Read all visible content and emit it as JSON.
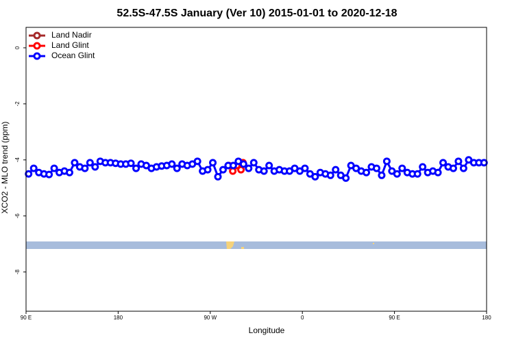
{
  "chart_data": {
    "type": "line",
    "title": "52.5S-47.5S January (Ver 10)   2015-01-01 to 2020-12-18",
    "xlabel": "Longitude",
    "ylabel": "XCO2 - MLO trend (ppm)",
    "xlim": [
      90,
      540
    ],
    "ylim": [
      -9.4,
      0.73
    ],
    "xticks": [
      {
        "value": 90,
        "label": "90 E"
      },
      180,
      {
        "value": 270,
        "label": "90 W"
      },
      {
        "value": 360,
        "label": "0"
      },
      {
        "value": 450,
        "label": "90 E"
      },
      {
        "value": 540,
        "label": "180"
      }
    ],
    "yticks": [
      -8,
      -6,
      -4,
      -2,
      0
    ],
    "legend": "top-left",
    "series": [
      {
        "name": "Land Nadir",
        "color": "#a52a2a",
        "x": [],
        "values": []
      },
      {
        "name": "Land Glint",
        "color": "#ff0000",
        "x": [
          288,
          292,
          296,
          300,
          302
        ],
        "values": [
          -4.2,
          -4.4,
          -4.2,
          -4.35,
          -4.1
        ]
      },
      {
        "name": "Ocean Glint",
        "color": "#0000ff",
        "x": [
          92.5,
          97.5,
          102.5,
          107.5,
          112.5,
          117.5,
          122.5,
          127.5,
          132.5,
          137.5,
          142.5,
          147.5,
          152.5,
          157.5,
          162.5,
          167.5,
          172.5,
          177.5,
          182.5,
          187.5,
          192.5,
          197.5,
          202.5,
          207.5,
          212.5,
          217.5,
          222.5,
          227.5,
          232.5,
          237.5,
          242.5,
          247.5,
          252.5,
          257.5,
          262.5,
          267.5,
          272.5,
          277.5,
          282.5,
          287.5,
          292.5,
          297.5,
          302.5,
          307.5,
          312.5,
          317.5,
          322.5,
          327.5,
          332.5,
          337.5,
          342.5,
          347.5,
          352.5,
          357.5,
          362.5,
          367.5,
          372.5,
          377.5,
          382.5,
          387.5,
          392.5,
          397.5,
          402.5,
          407.5,
          412.5,
          417.5,
          422.5,
          427.5,
          432.5,
          437.5,
          442.5,
          447.5,
          452.5,
          457.5,
          462.5,
          467.5,
          472.5,
          477.5,
          482.5,
          487.5,
          492.5,
          497.5,
          502.5,
          507.5,
          512.5,
          517.5,
          522.5,
          527.5,
          532.5,
          537.5
        ],
        "values": [
          -4.5,
          -4.3,
          -4.45,
          -4.5,
          -4.52,
          -4.3,
          -4.45,
          -4.4,
          -4.45,
          -4.1,
          -4.25,
          -4.3,
          -4.1,
          -4.25,
          -4.05,
          -4.1,
          -4.1,
          -4.12,
          -4.15,
          -4.15,
          -4.12,
          -4.3,
          -4.15,
          -4.2,
          -4.3,
          -4.25,
          -4.22,
          -4.2,
          -4.15,
          -4.3,
          -4.15,
          -4.2,
          -4.15,
          -4.05,
          -4.4,
          -4.35,
          -4.1,
          -4.6,
          -4.35,
          -4.2,
          -4.2,
          -4.05,
          -4.15,
          -4.3,
          -4.1,
          -4.35,
          -4.4,
          -4.2,
          -4.4,
          -4.35,
          -4.4,
          -4.4,
          -4.3,
          -4.4,
          -4.3,
          -4.5,
          -4.6,
          -4.45,
          -4.5,
          -4.55,
          -4.35,
          -4.55,
          -4.65,
          -4.2,
          -4.3,
          -4.4,
          -4.45,
          -4.25,
          -4.3,
          -4.55,
          -4.05,
          -4.4,
          -4.5,
          -4.3,
          -4.45,
          -4.5,
          -4.5,
          -4.25,
          -4.45,
          -4.4,
          -4.45,
          -4.1,
          -4.25,
          -4.3,
          -4.05,
          -4.3,
          -4.0,
          -4.1,
          -4.1,
          -4.1
        ]
      }
    ]
  }
}
